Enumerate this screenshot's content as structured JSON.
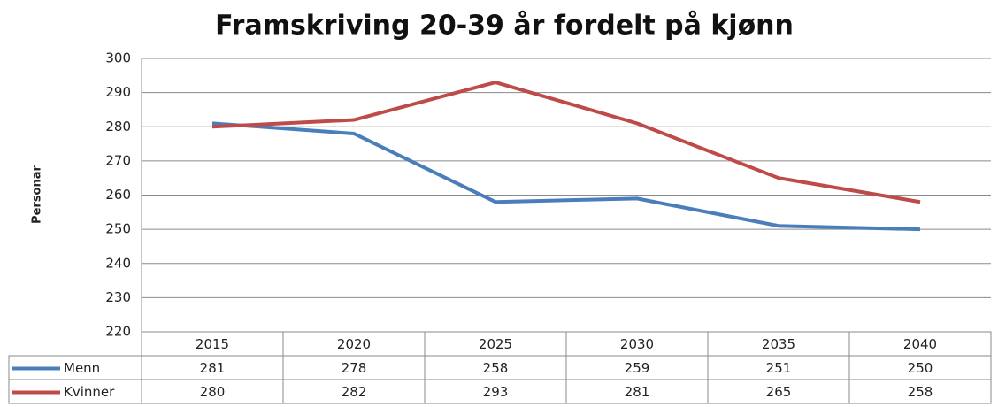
{
  "chart_data": {
    "type": "line",
    "title": "Framskriving 20-39 år   fordelt på kjønn",
    "y_label": "Personar",
    "categories": [
      "2015",
      "2020",
      "2025",
      "2030",
      "2035",
      "2040"
    ],
    "series": [
      {
        "name": "Menn",
        "color": "#4a7ebb",
        "values": [
          281,
          278,
          258,
          259,
          251,
          250
        ]
      },
      {
        "name": "Kvinner",
        "color": "#be4b48",
        "values": [
          280,
          282,
          293,
          281,
          265,
          258
        ]
      }
    ],
    "ylim": [
      220,
      300
    ],
    "yticks": [
      220,
      230,
      240,
      250,
      260,
      270,
      280,
      290,
      300
    ],
    "grid": true,
    "data_table": true
  }
}
